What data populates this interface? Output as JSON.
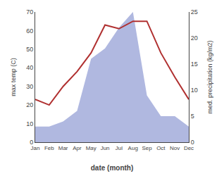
{
  "chart_data": {
    "type": "line",
    "categories": [
      "Jan",
      "Feb",
      "Mar",
      "Apr",
      "May",
      "Jun",
      "Jul",
      "Aug",
      "Sep",
      "Oct",
      "Nov",
      "Dec"
    ],
    "xlabel": "date (month)",
    "ylabel": "max temp (C)",
    "y2label": "med. precipitation (kg/m2)",
    "ylim": [
      0,
      70
    ],
    "yticks": [
      0,
      10,
      20,
      30,
      40,
      50,
      60,
      70
    ],
    "y2lim": [
      0,
      25
    ],
    "y2ticks": [
      0,
      5,
      10,
      15,
      20,
      25
    ],
    "grid": false,
    "series": [
      {
        "type": "area",
        "color": "#b0b8e0",
        "values": [
          3,
          3,
          4,
          6,
          16,
          18,
          22,
          25,
          9,
          5,
          5,
          3
        ],
        "axis": "y2"
      },
      {
        "type": "line",
        "color": "#b03030",
        "values": [
          23,
          20,
          30,
          38,
          48,
          63,
          61,
          65,
          65,
          48,
          35,
          23
        ]
      }
    ]
  }
}
